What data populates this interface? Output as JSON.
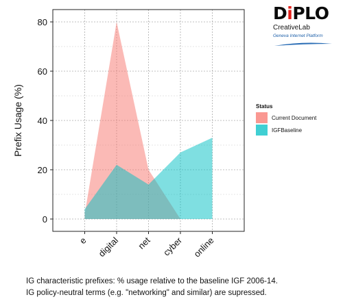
{
  "chart_data": {
    "type": "area",
    "categories": [
      "e",
      "digital",
      "net",
      "cyber",
      "online"
    ],
    "series": [
      {
        "name": "Current Document",
        "values": [
          2,
          80,
          20,
          0,
          0
        ],
        "color": "#f8766d"
      },
      {
        "name": "IGFBaseline",
        "values": [
          4,
          22,
          14,
          27,
          33
        ],
        "color": "#00bfc4"
      }
    ],
    "ylabel": "Prefix Usage (%)",
    "xlabel": "",
    "title": "",
    "ylim": [
      -5,
      85
    ],
    "yticks": [
      0,
      20,
      40,
      60,
      80
    ],
    "grid": true,
    "legend": {
      "title": "Status",
      "placement": "right"
    }
  },
  "logo": {
    "brand": "DiPLO",
    "brand_pre": "D",
    "brand_i": "i",
    "brand_post": "PLO",
    "sub": "CreativeLab",
    "tagline": "Geneva Internet Platform",
    "colors": {
      "i": "#e4211b",
      "tagline": "#1b5ea8"
    }
  },
  "caption": {
    "line1": "IG characteristic prefixes: % usage relative to the baseline IGF 2006-14.",
    "line2": "IG policy-neutral terms (e.g. \"networking\" and similar) are supressed."
  }
}
